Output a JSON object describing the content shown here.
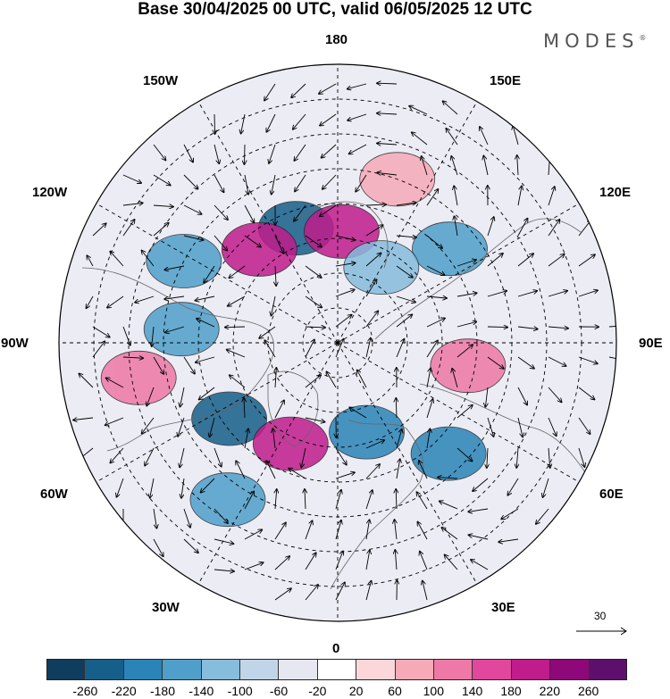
{
  "title": "Base 30/04/2025 00 UTC, valid 06/05/2025 12 UTC",
  "brand": "MODES",
  "brand_mark": "®",
  "map": {
    "longitude_labels": {
      "lon180": "180",
      "lon150w": "150W",
      "lon150e": "150E",
      "lon120w": "120W",
      "lon120e": "120E",
      "lon90w": "90W",
      "lon90e": "90E",
      "lon60w": "60W",
      "lon60e": "60E",
      "lon30w": "30W",
      "lon30e": "30E",
      "lon0": "0"
    },
    "vector_reference": "30"
  },
  "colorbar": {
    "colors": [
      "#0e3d5e",
      "#165f8a",
      "#2a84b8",
      "#4f9fca",
      "#86bcdc",
      "#c1d5e9",
      "#e7e7f2",
      "#ffffff",
      "#fbd7dc",
      "#f6aab8",
      "#ee78a6",
      "#e0479d",
      "#c01c8c",
      "#8f087a",
      "#5e0f6e"
    ],
    "ticks": [
      "-260",
      "-220",
      "-180",
      "-140",
      "-100",
      "-60",
      "-20",
      "20",
      "60",
      "100",
      "140",
      "180",
      "220",
      "260"
    ]
  },
  "anomaly_features": [
    {
      "color": "#165f8a",
      "lon": -160,
      "lat": 55
    },
    {
      "color": "#c01c8c",
      "lon": -140,
      "lat": 55
    },
    {
      "color": "#c01c8c",
      "lon": 178,
      "lat": 58
    },
    {
      "color": "#4f9fca",
      "lon": -118,
      "lat": 40
    },
    {
      "color": "#4f9fca",
      "lon": 130,
      "lat": 48
    },
    {
      "color": "#86bcdc",
      "lon": 150,
      "lat": 65
    },
    {
      "color": "#4f9fca",
      "lon": -95,
      "lat": 45
    },
    {
      "color": "#ee78a6",
      "lon": -80,
      "lat": 32
    },
    {
      "color": "#165f8a",
      "lon": -55,
      "lat": 52
    },
    {
      "color": "#c01c8c",
      "lon": -25,
      "lat": 58
    },
    {
      "color": "#2a84b8",
      "lon": 18,
      "lat": 63
    },
    {
      "color": "#2a84b8",
      "lon": 45,
      "lat": 45
    },
    {
      "color": "#4f9fca",
      "lon": -35,
      "lat": 35
    },
    {
      "color": "#ee78a6",
      "lon": 80,
      "lat": 52
    },
    {
      "color": "#f6aab8",
      "lon": 160,
      "lat": 40
    }
  ]
}
